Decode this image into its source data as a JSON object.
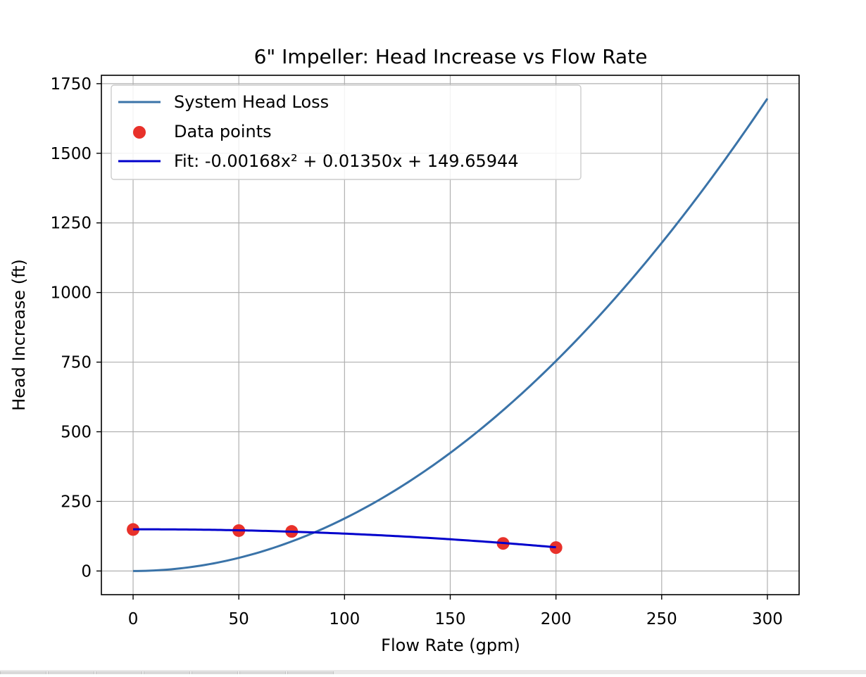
{
  "chart_data": {
    "type": "line",
    "title": "6\" Impeller: Head Increase vs Flow Rate",
    "xlabel": "Flow Rate (gpm)",
    "ylabel": "Head Increase (ft)",
    "xlim": [
      -15,
      315
    ],
    "ylim": [
      -85,
      1780
    ],
    "x_ticks": [
      0,
      50,
      100,
      150,
      200,
      250,
      300
    ],
    "y_ticks": [
      0,
      250,
      500,
      750,
      1000,
      1250,
      1500,
      1750
    ],
    "grid": true,
    "legend_position": "top-left",
    "series": [
      {
        "name": "System Head Loss",
        "kind": "line",
        "color": "#3a73a8",
        "x_range": [
          0,
          300
        ],
        "model": "quadratic",
        "coefficients": [
          0.01885,
          0,
          0
        ]
      },
      {
        "name": "Data points",
        "kind": "scatter",
        "color": "#e8312a",
        "x": [
          0,
          50,
          75,
          175,
          200
        ],
        "y": [
          149,
          145,
          142,
          99,
          84
        ]
      },
      {
        "name": "Fit: -0.00168x² + 0.01350x + 149.65944",
        "kind": "line",
        "color": "#0000cc",
        "x_range": [
          0,
          200
        ],
        "model": "quadratic",
        "coefficients": [
          -0.00168,
          0.0135,
          149.65944
        ]
      }
    ]
  }
}
